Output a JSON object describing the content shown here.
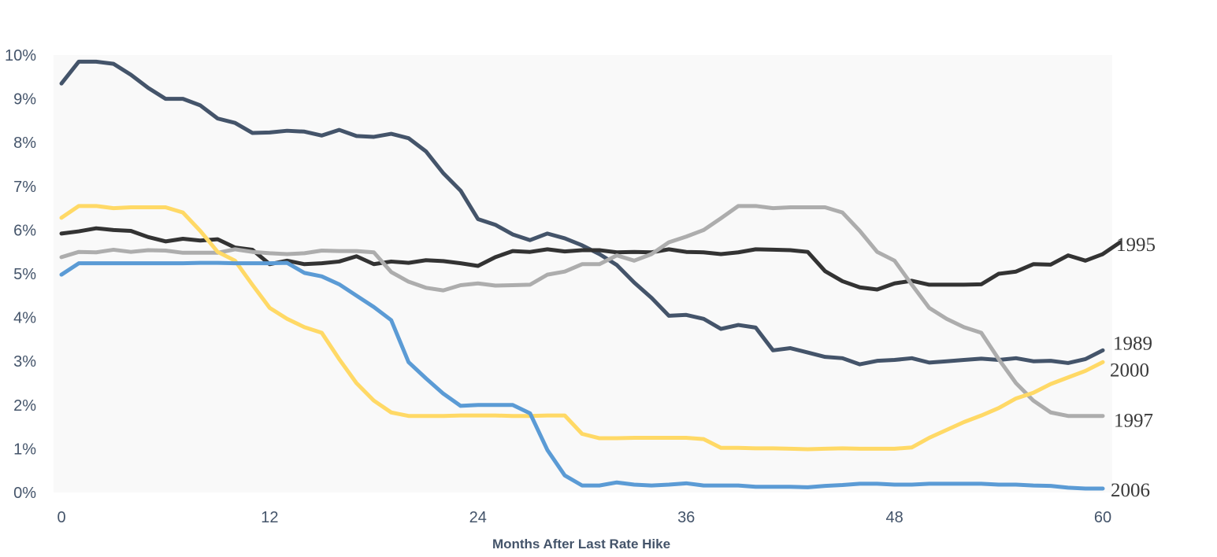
{
  "chart_data": {
    "type": "line",
    "title": "",
    "xlabel": "Months After Last Rate Hike",
    "ylabel": "",
    "xlim": [
      0,
      60
    ],
    "ylim": [
      0,
      10
    ],
    "x_ticks": [
      0,
      12,
      24,
      36,
      48,
      60
    ],
    "y_ticks": [
      {
        "value": 0,
        "label": "0%"
      },
      {
        "value": 1,
        "label": "1%"
      },
      {
        "value": 2,
        "label": "2%"
      },
      {
        "value": 3,
        "label": "3%"
      },
      {
        "value": 4,
        "label": "4%"
      },
      {
        "value": 5,
        "label": "5%"
      },
      {
        "value": 6,
        "label": "6%"
      },
      {
        "value": 7,
        "label": "7%"
      },
      {
        "value": 8,
        "label": "8%"
      },
      {
        "value": 9,
        "label": "9%"
      },
      {
        "value": 10,
        "label": "10%"
      }
    ],
    "grid": false,
    "legend": "none",
    "series": [
      {
        "name": "1989",
        "color": "#44546a",
        "values": [
          9.35,
          9.85,
          9.85,
          9.8,
          9.55,
          9.25,
          9.0,
          9.0,
          8.85,
          8.55,
          8.45,
          8.22,
          8.23,
          8.27,
          8.25,
          8.16,
          8.29,
          8.15,
          8.13,
          8.2,
          8.1,
          7.8,
          7.3,
          6.9,
          6.25,
          6.12,
          5.9,
          5.77,
          5.92,
          5.81,
          5.65,
          5.45,
          5.2,
          4.8,
          4.45,
          4.04,
          4.06,
          3.97,
          3.74,
          3.83,
          3.77,
          3.25,
          3.3,
          3.2,
          3.1,
          3.07,
          2.93,
          3.01,
          3.03,
          3.07,
          2.97,
          3.0,
          3.03,
          3.06,
          3.03,
          3.07,
          3.0,
          3.01,
          2.96,
          3.05,
          3.25
        ]
      },
      {
        "name": "1995",
        "color": "#333333",
        "values": [
          5.92,
          5.97,
          6.04,
          6.0,
          5.98,
          5.84,
          5.74,
          5.8,
          5.76,
          5.79,
          5.6,
          5.55,
          5.22,
          5.3,
          5.22,
          5.24,
          5.28,
          5.4,
          5.22,
          5.28,
          5.25,
          5.31,
          5.29,
          5.24,
          5.18,
          5.38,
          5.52,
          5.5,
          5.56,
          5.51,
          5.54,
          5.54,
          5.49,
          5.5,
          5.49,
          5.56,
          5.5,
          5.49,
          5.45,
          5.49,
          5.56,
          5.55,
          5.54,
          5.5,
          5.06,
          4.83,
          4.69,
          4.64,
          4.78,
          4.84,
          4.75,
          4.75,
          4.75,
          4.76,
          5.0,
          5.05,
          5.22,
          5.21,
          5.42,
          5.3,
          5.45,
          5.72
        ]
      },
      {
        "name": "1997",
        "color": "#adadad",
        "values": [
          5.38,
          5.5,
          5.49,
          5.55,
          5.5,
          5.54,
          5.53,
          5.48,
          5.48,
          5.48,
          5.56,
          5.5,
          5.47,
          5.45,
          5.47,
          5.53,
          5.52,
          5.52,
          5.49,
          5.04,
          4.82,
          4.68,
          4.62,
          4.74,
          4.78,
          4.73,
          4.74,
          4.75,
          4.98,
          5.05,
          5.22,
          5.22,
          5.42,
          5.3,
          5.45,
          5.72,
          5.85,
          6.0,
          6.27,
          6.55,
          6.55,
          6.5,
          6.52,
          6.52,
          6.52,
          6.4,
          5.98,
          5.5,
          5.3,
          4.75,
          4.22,
          3.97,
          3.78,
          3.65,
          3.05,
          2.5,
          2.1,
          1.83,
          1.75,
          1.75,
          1.75
        ]
      },
      {
        "name": "2000",
        "color": "#ffd966",
        "values": [
          6.28,
          6.55,
          6.55,
          6.5,
          6.52,
          6.52,
          6.52,
          6.4,
          5.98,
          5.5,
          5.3,
          4.75,
          4.22,
          3.97,
          3.78,
          3.65,
          3.05,
          2.5,
          2.1,
          1.83,
          1.75,
          1.75,
          1.75,
          1.76,
          1.76,
          1.76,
          1.75,
          1.75,
          1.76,
          1.76,
          1.34,
          1.24,
          1.24,
          1.25,
          1.25,
          1.25,
          1.25,
          1.22,
          1.02,
          1.02,
          1.01,
          1.01,
          1.0,
          0.99,
          1.0,
          1.01,
          1.0,
          1.0,
          1.0,
          1.03,
          1.25,
          1.43,
          1.61,
          1.76,
          1.93,
          2.15,
          2.28,
          2.48,
          2.63,
          2.78,
          2.98
        ]
      },
      {
        "name": "2006",
        "color": "#5b9bd5",
        "values": [
          4.98,
          5.24,
          5.24,
          5.24,
          5.24,
          5.24,
          5.24,
          5.24,
          5.25,
          5.25,
          5.24,
          5.24,
          5.24,
          5.25,
          5.02,
          4.94,
          4.76,
          4.5,
          4.24,
          3.94,
          2.98,
          2.61,
          2.26,
          1.98,
          2.0,
          2.0,
          2.0,
          1.81,
          0.97,
          0.39,
          0.16,
          0.16,
          0.23,
          0.18,
          0.16,
          0.18,
          0.21,
          0.16,
          0.16,
          0.16,
          0.13,
          0.13,
          0.13,
          0.12,
          0.15,
          0.17,
          0.2,
          0.2,
          0.18,
          0.18,
          0.2,
          0.2,
          0.2,
          0.2,
          0.18,
          0.18,
          0.16,
          0.15,
          0.11,
          0.09,
          0.09
        ]
      }
    ],
    "series_labels": [
      {
        "name": "1995",
        "text": "1995"
      },
      {
        "name": "1989",
        "text": "1989"
      },
      {
        "name": "2000",
        "text": "2000"
      },
      {
        "name": "1997",
        "text": "1997"
      },
      {
        "name": "2006",
        "text": "2006"
      }
    ],
    "plot_background": "#f9f9f9",
    "axis_text_color": "#44546a"
  }
}
